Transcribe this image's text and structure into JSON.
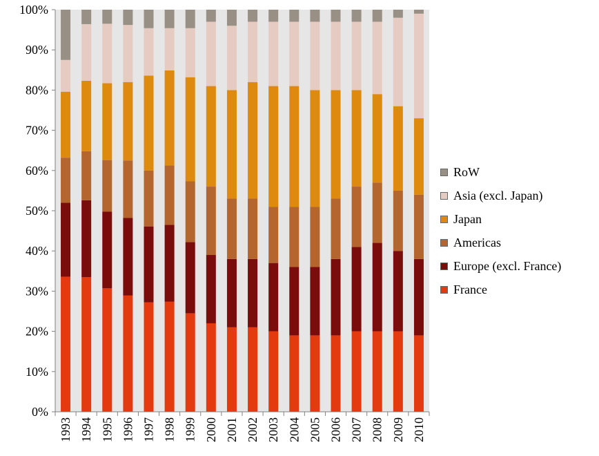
{
  "chart_data": {
    "type": "bar",
    "stacked": true,
    "percent": true,
    "categories": [
      "1993",
      "1994",
      "1995",
      "1996",
      "1997",
      "1998",
      "1999",
      "2000",
      "2001",
      "2002",
      "2003",
      "2004",
      "2005",
      "2006",
      "2007",
      "2008",
      "2009",
      "2010"
    ],
    "series": [
      {
        "name": "France",
        "color": "#e33a10",
        "values": [
          33.6,
          33.5,
          30.7,
          28.9,
          27.2,
          27.4,
          24.5,
          22,
          21,
          21,
          20,
          19,
          19,
          19,
          20,
          20,
          20,
          19
        ]
      },
      {
        "name": "Europe (excl. France)",
        "color": "#7b0c0c",
        "values": [
          18.4,
          19.1,
          19.1,
          19.3,
          18.9,
          19.1,
          17.7,
          17,
          17,
          17,
          17,
          17,
          17,
          19,
          21,
          22,
          20,
          19
        ]
      },
      {
        "name": "Americas",
        "color": "#b5652e",
        "values": [
          11.2,
          12.2,
          12.8,
          14.3,
          13.9,
          14.8,
          15.1,
          17,
          15,
          15,
          14,
          15,
          15,
          15,
          15,
          15,
          15,
          16
        ]
      },
      {
        "name": "Japan",
        "color": "#dd8a0e",
        "values": [
          16.4,
          17.5,
          19.1,
          19.5,
          23.6,
          23.6,
          25.9,
          25,
          27,
          29,
          30,
          30,
          29,
          27,
          24,
          22,
          21,
          19
        ]
      },
      {
        "name": "Asia (excl. Japan)",
        "color": "#e6cbc2",
        "values": [
          7.9,
          14.1,
          14.8,
          14.2,
          11.8,
          10.5,
          12.2,
          16,
          16,
          15,
          16,
          16,
          17,
          17,
          17,
          18,
          22,
          26
        ]
      },
      {
        "name": "RoW",
        "color": "#999085",
        "values": [
          12.5,
          3.6,
          3.5,
          3.8,
          4.6,
          4.6,
          4.6,
          3,
          4,
          3,
          3,
          3,
          3,
          3,
          3,
          3,
          2,
          1
        ]
      }
    ],
    "ylim": [
      0,
      100
    ],
    "yticks": [
      "0%",
      "10%",
      "20%",
      "30%",
      "40%",
      "50%",
      "60%",
      "70%",
      "80%",
      "90%",
      "100%"
    ],
    "legend_position": "right",
    "legend_order": [
      "RoW",
      "Asia (excl. Japan)",
      "Japan",
      "Americas",
      "Europe (excl. France)",
      "France"
    ],
    "grid": false,
    "plot_background": "#e6e6e6"
  }
}
